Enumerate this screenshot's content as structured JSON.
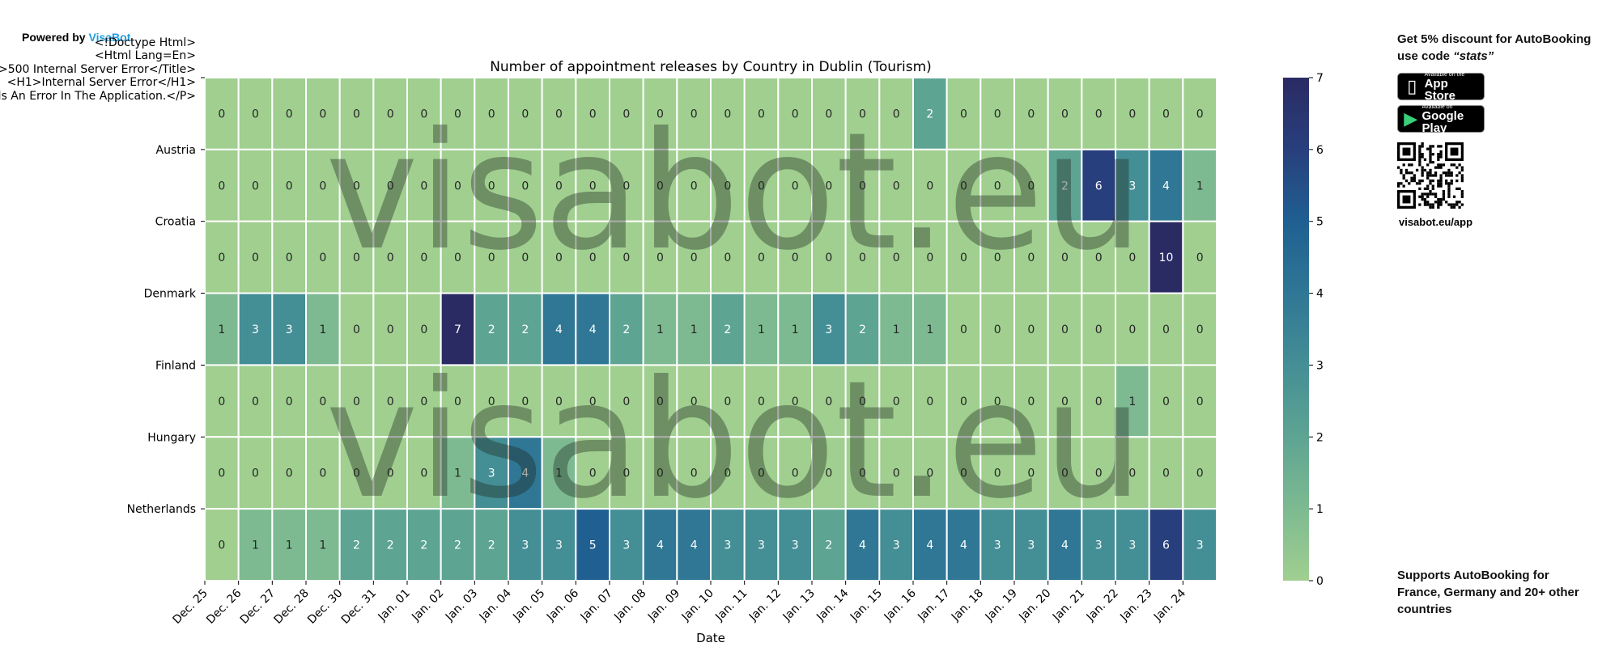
{
  "header": {
    "powered_by": "Powered by",
    "brand": "VisaBot",
    "error_lines": [
      "<!Doctype Html>",
      "<Html Lang=En>",
      ">500 Internal Server Error</Title>",
      "<H1>Internal Server Error</H1>",
      "ls An Error In The Application.</P>"
    ]
  },
  "sidebar": {
    "discount_prefix": "Get 5% discount for ",
    "discount_brand": "AutoBooking",
    "discount_mid": "use code ",
    "discount_code": "“stats”",
    "appstore_small": "Available on the",
    "appstore_big": "App Store",
    "googleplay_small": "Available on",
    "googleplay_big": "Google Play",
    "qr_label": "visabot.eu/app",
    "supports_prefix": "Supports ",
    "supports_brand": "AutoBooking",
    "supports_rest": " for France, Germany and 20+ other countries"
  },
  "watermark": "visabot.eu",
  "chart_data": {
    "type": "heatmap",
    "title": "Number of appointment releases by Country in Dublin (Tourism)",
    "xlabel": "Date",
    "ylabel": "",
    "x": [
      "Dec. 25",
      "Dec. 26",
      "Dec. 27",
      "Dec. 28",
      "Dec. 30",
      "Dec. 31",
      "Jan. 01",
      "Jan. 02",
      "Jan. 03",
      "Jan. 04",
      "Jan. 05",
      "Jan. 06",
      "Jan. 07",
      "Jan. 08",
      "Jan. 09",
      "Jan. 10",
      "Jan. 11",
      "Jan. 12",
      "Jan. 13",
      "Jan. 14",
      "Jan. 15",
      "Jan. 16",
      "Jan. 17",
      "Jan. 18",
      "Jan. 19",
      "Jan. 20",
      "Jan. 21",
      "Jan. 22",
      "Jan. 23",
      "Jan. 24"
    ],
    "y": [
      "",
      "Austria",
      "Croatia",
      "Denmark",
      "Finland",
      "Hungary",
      "Netherlands"
    ],
    "values": [
      [
        0,
        0,
        0,
        0,
        0,
        0,
        0,
        0,
        0,
        0,
        0,
        0,
        0,
        0,
        0,
        0,
        0,
        0,
        0,
        0,
        0,
        2,
        0,
        0,
        0,
        0,
        0,
        0,
        0,
        0
      ],
      [
        0,
        0,
        0,
        0,
        0,
        0,
        0,
        0,
        0,
        0,
        0,
        0,
        0,
        0,
        0,
        0,
        0,
        0,
        0,
        0,
        0,
        0,
        0,
        0,
        0,
        2,
        6,
        3,
        4,
        1
      ],
      [
        0,
        0,
        0,
        0,
        0,
        0,
        0,
        0,
        0,
        0,
        0,
        0,
        0,
        0,
        0,
        0,
        0,
        0,
        0,
        0,
        0,
        0,
        0,
        0,
        0,
        0,
        0,
        0,
        10,
        0
      ],
      [
        1,
        3,
        3,
        1,
        0,
        0,
        0,
        7,
        2,
        2,
        4,
        4,
        2,
        1,
        1,
        2,
        1,
        1,
        3,
        2,
        1,
        1,
        0,
        0,
        0,
        0,
        0,
        0,
        0,
        0
      ],
      [
        0,
        0,
        0,
        0,
        0,
        0,
        0,
        0,
        0,
        0,
        0,
        0,
        0,
        0,
        0,
        0,
        0,
        0,
        0,
        0,
        0,
        0,
        0,
        0,
        0,
        0,
        0,
        1,
        0,
        0
      ],
      [
        0,
        0,
        0,
        0,
        0,
        0,
        0,
        1,
        3,
        4,
        1,
        0,
        0,
        0,
        0,
        0,
        0,
        0,
        0,
        0,
        0,
        0,
        0,
        0,
        0,
        0,
        0,
        0,
        0,
        0
      ],
      [
        0,
        1,
        1,
        1,
        2,
        2,
        2,
        2,
        2,
        3,
        3,
        5,
        3,
        4,
        4,
        3,
        3,
        3,
        2,
        4,
        3,
        4,
        4,
        3,
        3,
        4,
        3,
        3,
        6,
        3
      ]
    ],
    "colorbar": {
      "min": 0,
      "max": 7,
      "ticks": [
        0,
        1,
        2,
        3,
        4,
        5,
        6,
        7
      ]
    },
    "colormap": [
      "#a0cf90",
      "#7dba91",
      "#5ea493",
      "#448e95",
      "#2f7795",
      "#1f5f91",
      "#283f7d",
      "#2a2b63"
    ]
  }
}
